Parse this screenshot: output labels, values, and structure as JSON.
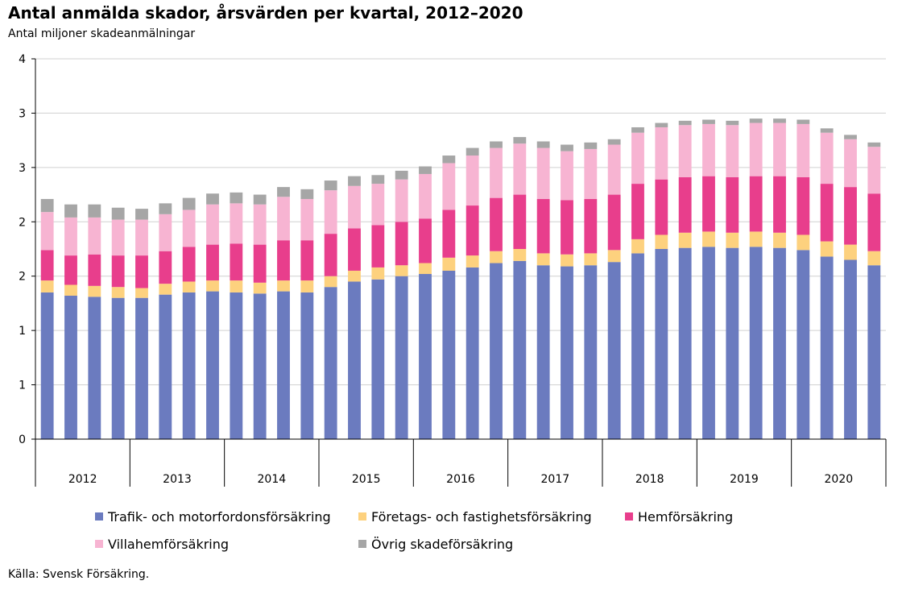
{
  "title": "Antal anmälda skador, årsvärden per kvartal, 2012–2020",
  "subtitle": "Antal miljoner skadeanmälningar",
  "source": "Källa: Svensk Försäkring.",
  "chart_data": {
    "type": "bar",
    "stacked": true,
    "ylabel": "Antal miljoner skadeanmälningar",
    "ylim": [
      0,
      3.5
    ],
    "y_tick_values": [
      0,
      0.5,
      1,
      1.5,
      2,
      2.5,
      3,
      3.5
    ],
    "y_tick_labels": [
      "0",
      "1",
      "1",
      "2",
      "2",
      "3",
      "3",
      "4"
    ],
    "grid": true,
    "legend_position": "bottom",
    "years": [
      "2012",
      "2013",
      "2014",
      "2015",
      "2016",
      "2017",
      "2018",
      "2019",
      "2020"
    ],
    "quarters_per_year": 4,
    "categories": [
      "2012 Q1",
      "2012 Q2",
      "2012 Q3",
      "2012 Q4",
      "2013 Q1",
      "2013 Q2",
      "2013 Q3",
      "2013 Q4",
      "2014 Q1",
      "2014 Q2",
      "2014 Q3",
      "2014 Q4",
      "2015 Q1",
      "2015 Q2",
      "2015 Q3",
      "2015 Q4",
      "2016 Q1",
      "2016 Q2",
      "2016 Q3",
      "2016 Q4",
      "2017 Q1",
      "2017 Q2",
      "2017 Q3",
      "2017 Q4",
      "2018 Q1",
      "2018 Q2",
      "2018 Q3",
      "2018 Q4",
      "2019 Q1",
      "2019 Q2",
      "2019 Q3",
      "2019 Q4",
      "2020 Q1",
      "2020 Q2",
      "2020 Q3",
      "2020 Q4"
    ],
    "series": [
      {
        "name": "Trafik- och motorfordonsförsäkring",
        "color": "#6b7bbf",
        "values": [
          1.35,
          1.32,
          1.31,
          1.3,
          1.3,
          1.33,
          1.35,
          1.36,
          1.35,
          1.34,
          1.36,
          1.35,
          1.4,
          1.45,
          1.47,
          1.5,
          1.52,
          1.55,
          1.58,
          1.62,
          1.64,
          1.6,
          1.59,
          1.6,
          1.63,
          1.71,
          1.75,
          1.76,
          1.77,
          1.76,
          1.77,
          1.76,
          1.74,
          1.68,
          1.65,
          1.6
        ]
      },
      {
        "name": "Företags- och fastighetsförsäkring",
        "color": "#fdd17e",
        "values": [
          0.11,
          0.1,
          0.1,
          0.1,
          0.09,
          0.1,
          0.1,
          0.1,
          0.11,
          0.1,
          0.1,
          0.11,
          0.1,
          0.1,
          0.11,
          0.1,
          0.1,
          0.12,
          0.11,
          0.11,
          0.11,
          0.11,
          0.11,
          0.11,
          0.11,
          0.13,
          0.13,
          0.14,
          0.14,
          0.14,
          0.14,
          0.14,
          0.14,
          0.14,
          0.14,
          0.13
        ]
      },
      {
        "name": "Hemförsäkring",
        "color": "#e83e8c",
        "values": [
          0.28,
          0.27,
          0.29,
          0.29,
          0.3,
          0.3,
          0.32,
          0.33,
          0.34,
          0.35,
          0.37,
          0.37,
          0.39,
          0.39,
          0.39,
          0.4,
          0.41,
          0.44,
          0.46,
          0.49,
          0.5,
          0.5,
          0.5,
          0.5,
          0.51,
          0.51,
          0.51,
          0.51,
          0.51,
          0.51,
          0.51,
          0.52,
          0.53,
          0.53,
          0.53,
          0.53
        ]
      },
      {
        "name": "Villahemförsäkring",
        "color": "#f7b4d2",
        "values": [
          0.35,
          0.35,
          0.34,
          0.33,
          0.33,
          0.34,
          0.34,
          0.37,
          0.37,
          0.37,
          0.4,
          0.38,
          0.4,
          0.39,
          0.38,
          0.39,
          0.41,
          0.43,
          0.46,
          0.46,
          0.47,
          0.47,
          0.45,
          0.46,
          0.46,
          0.47,
          0.48,
          0.48,
          0.48,
          0.48,
          0.49,
          0.49,
          0.49,
          0.47,
          0.44,
          0.43
        ]
      },
      {
        "name": "Övrig skadeförsäkring",
        "color": "#a6a6a6",
        "values": [
          0.12,
          0.12,
          0.12,
          0.11,
          0.1,
          0.1,
          0.11,
          0.1,
          0.1,
          0.09,
          0.09,
          0.09,
          0.09,
          0.09,
          0.08,
          0.08,
          0.07,
          0.07,
          0.07,
          0.06,
          0.06,
          0.06,
          0.06,
          0.06,
          0.05,
          0.05,
          0.04,
          0.04,
          0.04,
          0.04,
          0.04,
          0.04,
          0.04,
          0.04,
          0.04,
          0.04
        ]
      }
    ]
  }
}
